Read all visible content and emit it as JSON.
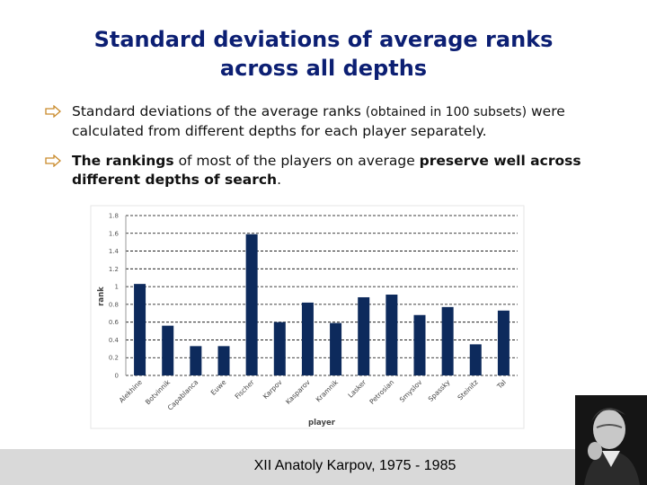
{
  "slide": {
    "title_line1": "Standard deviations of average ranks",
    "title_line2": "across all depths",
    "bullet1": {
      "part1": "Standard deviations of the average ranks ",
      "part2": "(obtained in 100 subsets)",
      "part3": " were calculated from different depths for each player separately."
    },
    "bullet2": {
      "part1": "The rankings",
      "part2": " of most of the players on average ",
      "part3": "preserve well",
      "part4": " across different depths of search",
      "part5": "."
    },
    "footer": "XII   Anatoly Karpov, 1975 - 1985"
  },
  "colors": {
    "title": "#0c1f73",
    "bar": "#0d2a5c",
    "arrow": "#c98a2b"
  },
  "chart_data": {
    "type": "bar",
    "categories": [
      "Alekhine",
      "Botvinnik",
      "Capablanca",
      "Euwe",
      "Fischer",
      "Karpov",
      "Kasparov",
      "Kramnik",
      "Lasker",
      "Petrosian",
      "Smyslov",
      "Spassky",
      "Steinitz",
      "Tal"
    ],
    "values": [
      1.03,
      0.56,
      0.33,
      0.33,
      1.59,
      0.6,
      0.82,
      0.59,
      0.88,
      0.91,
      0.68,
      0.77,
      0.35,
      0.73
    ],
    "y_ticks": [
      "0",
      "0.2",
      "0.4",
      "0.6",
      "0.8",
      "1",
      "1.2",
      "1.4",
      "1.6",
      "1.8"
    ],
    "ylim": [
      0,
      1.8
    ],
    "xlabel": "player",
    "ylabel": "rank",
    "grid": true
  }
}
